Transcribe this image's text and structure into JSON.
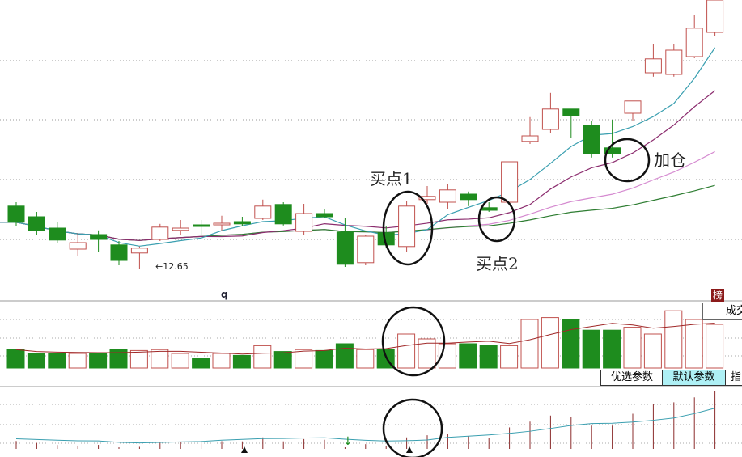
{
  "chart_data": {
    "type": "candlestick",
    "low_marker": "12.65",
    "candles": [
      {
        "o": 14.58,
        "h": 14.7,
        "l": 13.95,
        "c": 14.08
      },
      {
        "o": 14.25,
        "h": 14.4,
        "l": 13.7,
        "c": 13.83
      },
      {
        "o": 13.9,
        "h": 14.08,
        "l": 13.45,
        "c": 13.53
      },
      {
        "o": 13.25,
        "h": 13.75,
        "l": 13.03,
        "c": 13.45
      },
      {
        "o": 13.7,
        "h": 13.83,
        "l": 13.15,
        "c": 13.55
      },
      {
        "o": 13.38,
        "h": 13.5,
        "l": 12.75,
        "c": 12.9
      },
      {
        "o": 13.13,
        "h": 13.33,
        "l": 12.65,
        "c": 13.28
      },
      {
        "o": 13.55,
        "h": 14.03,
        "l": 13.5,
        "c": 13.93
      },
      {
        "o": 13.83,
        "h": 14.15,
        "l": 13.7,
        "c": 13.9
      },
      {
        "o": 14.0,
        "h": 14.15,
        "l": 13.7,
        "c": 13.95
      },
      {
        "o": 14.0,
        "h": 14.28,
        "l": 13.83,
        "c": 14.05
      },
      {
        "o": 14.1,
        "h": 14.25,
        "l": 13.95,
        "c": 14.03
      },
      {
        "o": 14.2,
        "h": 14.78,
        "l": 14.15,
        "c": 14.58
      },
      {
        "o": 14.63,
        "h": 14.7,
        "l": 13.98,
        "c": 14.03
      },
      {
        "o": 13.8,
        "h": 14.65,
        "l": 13.7,
        "c": 14.35
      },
      {
        "o": 14.35,
        "h": 14.5,
        "l": 14.2,
        "c": 14.25
      },
      {
        "o": 13.78,
        "h": 14.2,
        "l": 12.7,
        "c": 12.78
      },
      {
        "o": 12.83,
        "h": 13.7,
        "l": 12.75,
        "c": 13.65
      },
      {
        "o": 13.75,
        "h": 13.95,
        "l": 13.3,
        "c": 13.38
      },
      {
        "o": 13.33,
        "h": 14.75,
        "l": 13.15,
        "c": 14.58
      },
      {
        "o": 14.78,
        "h": 15.2,
        "l": 14.65,
        "c": 14.88
      },
      {
        "o": 14.7,
        "h": 15.25,
        "l": 14.5,
        "c": 15.08
      },
      {
        "o": 14.95,
        "h": 15.03,
        "l": 14.58,
        "c": 14.78
      },
      {
        "o": 14.53,
        "h": 14.7,
        "l": 14.4,
        "c": 14.45
      },
      {
        "o": 14.7,
        "h": 15.95,
        "l": 14.65,
        "c": 15.95
      },
      {
        "o": 16.58,
        "h": 17.33,
        "l": 16.5,
        "c": 16.75
      },
      {
        "o": 16.95,
        "h": 18.08,
        "l": 16.83,
        "c": 17.58
      },
      {
        "o": 17.58,
        "h": 17.58,
        "l": 16.7,
        "c": 17.38
      },
      {
        "o": 17.08,
        "h": 17.2,
        "l": 16.08,
        "c": 16.2
      },
      {
        "o": 16.38,
        "h": 17.25,
        "l": 16.08,
        "c": 16.2
      },
      {
        "o": 17.45,
        "h": 17.83,
        "l": 17.2,
        "c": 17.83
      },
      {
        "o": 18.7,
        "h": 19.58,
        "l": 18.58,
        "c": 19.13
      },
      {
        "o": 18.65,
        "h": 19.58,
        "l": 18.58,
        "c": 19.4
      },
      {
        "o": 19.2,
        "h": 20.5,
        "l": 19.15,
        "c": 20.08
      },
      {
        "o": 19.95,
        "h": 20.95,
        "l": 19.83,
        "c": 20.95
      }
    ],
    "volume": [
      19,
      15,
      15,
      15,
      15,
      19,
      18,
      19,
      15,
      10,
      15,
      13,
      23,
      17,
      19,
      18,
      25,
      19,
      19,
      35,
      30,
      25,
      25,
      23,
      23,
      50,
      52,
      50,
      39,
      39,
      42,
      35,
      59,
      50,
      45
    ],
    "colors": {
      "up": "#c0504d",
      "down": "#1e8c1e",
      "ma5": "#3a9fb0",
      "ma10": "#8b2c6e",
      "ma20": "#d58ad0",
      "ma60": "#2e7d32"
    }
  },
  "annotations": {
    "buy1": "买点1",
    "buy2": "买点2",
    "add": "加仓"
  },
  "panel_label": "q",
  "rank_icon": "榜",
  "volume_button": "成交",
  "tabs": [
    "优选参数",
    "默认参数",
    "指"
  ]
}
